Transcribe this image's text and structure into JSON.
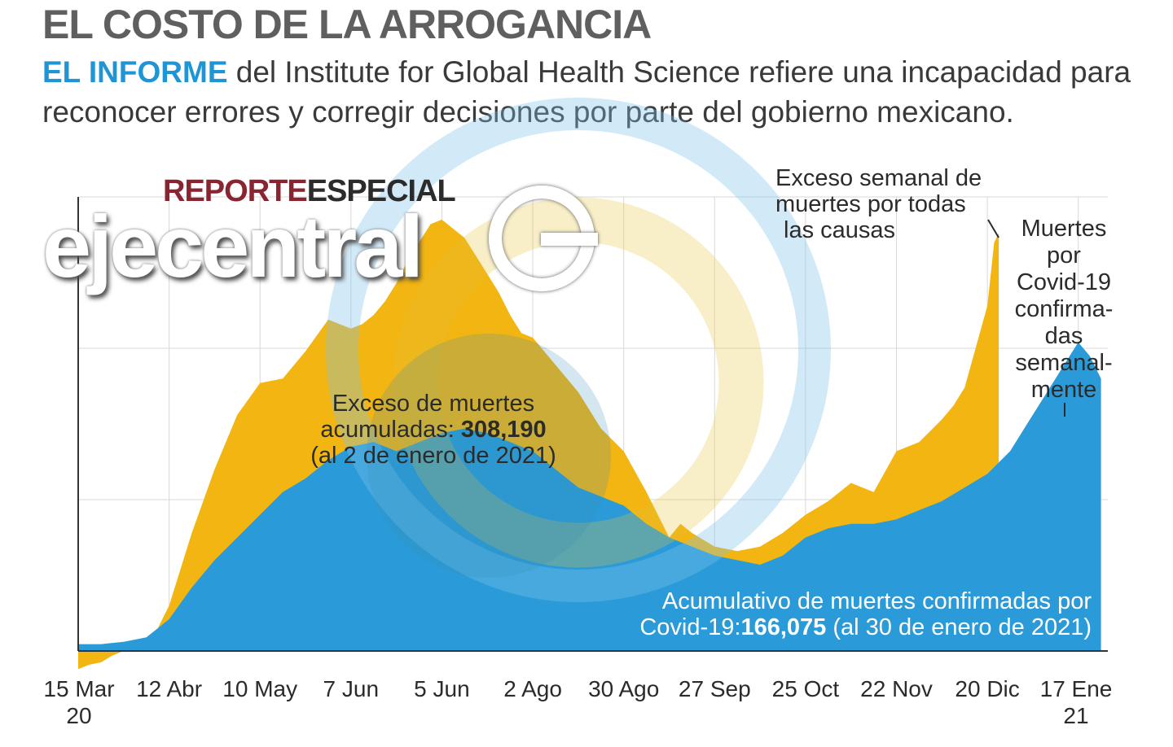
{
  "title": "EL COSTO DE LA ARROGANCIA",
  "subtitle": {
    "lead": "EL INFORME",
    "text": " del Institute for Global Health Science refiere una incapacidad para reconocer errores y corregir decisiones por parte del gobierno mexicano."
  },
  "brand": {
    "reporte": "REPORTE",
    "especial": "ESPECIAL",
    "name": "ejecentral"
  },
  "colors": {
    "excess": "#f2b512",
    "covid": "#2a9bd8",
    "grid": "#d8d8d8",
    "axis": "#333333"
  },
  "annotations": {
    "excess_weekly": [
      "Exceso semanal de",
      "muertes por todas",
      "las causas"
    ],
    "covid_weekly": [
      "Muertes",
      "por",
      "Covid-19",
      "confirma-",
      "das",
      "semanal-",
      "mente"
    ],
    "excess_cum": {
      "line1": "Exceso de muertes",
      "label": "acumuladas: ",
      "value": "308,190",
      "line3": "(al 2 de enero de 2021)"
    },
    "covid_cum": {
      "line1": "Acumulativo de muertes confirmadas por",
      "label": "Covid-19:",
      "value": "166,075",
      "line3": " (al 30 de enero de 2021)"
    }
  },
  "chart_data": {
    "type": "area",
    "title": "",
    "xlabel": "",
    "ylabel": "",
    "ylim": [
      0,
      100
    ],
    "grid": true,
    "ticks": [
      "15 Mar 20",
      "12 Abr",
      "10 May",
      "7 Jun",
      "5 Jun",
      "2 Ago",
      "30 Ago",
      "27 Sep",
      "25 Oct",
      "22 Nov",
      "20 Dic",
      "17 Ene 21"
    ],
    "x": [
      0,
      4,
      8,
      12,
      16,
      20,
      24,
      28,
      32,
      36,
      40,
      44
    ],
    "series": [
      {
        "name": "Exceso semanal de muertes por todas las causas",
        "x": [
          0,
          0.5,
          1,
          1.5,
          2,
          2.5,
          3,
          3.5,
          4,
          5,
          6,
          7,
          8,
          9,
          10,
          11,
          12,
          12.5,
          13,
          13.5,
          14,
          14.5,
          15,
          15.5,
          16,
          16.5,
          17,
          17.5,
          18,
          18.5,
          19,
          19.5,
          20,
          21,
          22,
          23,
          24,
          25,
          26,
          26.5,
          27,
          28,
          29,
          30,
          31,
          32,
          33,
          34,
          35,
          36,
          37,
          38,
          38.5,
          39,
          39.5,
          40,
          40.3,
          40.5
        ],
        "values": [
          -4,
          -3,
          -2.5,
          -1,
          0,
          2,
          3,
          5,
          10,
          26,
          40,
          52,
          59,
          60,
          66,
          73,
          71,
          72,
          74,
          77,
          81,
          86,
          90,
          94,
          95,
          93,
          91,
          87,
          83,
          79,
          74,
          70,
          69,
          63,
          57,
          49,
          44,
          35,
          25,
          28,
          26,
          23,
          22,
          23,
          26,
          30,
          33,
          37,
          35,
          44,
          46,
          51,
          54,
          58,
          67,
          76,
          90,
          92
        ]
      },
      {
        "name": "Muertes por Covid-19 confirmadas semanalmente",
        "x": [
          0,
          1,
          2,
          3,
          3.5,
          4,
          5,
          6,
          7,
          8,
          9,
          10,
          11,
          12,
          13,
          14,
          15,
          16,
          17,
          18,
          19,
          20,
          21,
          22,
          23,
          24,
          25,
          26,
          27,
          28,
          29,
          30,
          31,
          32,
          33,
          34,
          35,
          36,
          37,
          38,
          39,
          40,
          41,
          42,
          43,
          44,
          44.5,
          45
        ],
        "values": [
          1.5,
          1.5,
          2,
          3,
          5,
          7,
          14,
          20,
          25,
          30,
          35,
          38,
          42,
          45,
          46,
          44,
          46,
          48,
          49,
          48,
          46,
          44,
          40,
          36,
          34,
          32,
          28,
          25,
          23,
          21,
          20,
          19,
          21,
          25,
          27,
          28,
          28,
          29,
          31,
          33,
          36,
          39,
          44,
          52,
          60,
          68,
          65,
          60
        ]
      }
    ]
  }
}
